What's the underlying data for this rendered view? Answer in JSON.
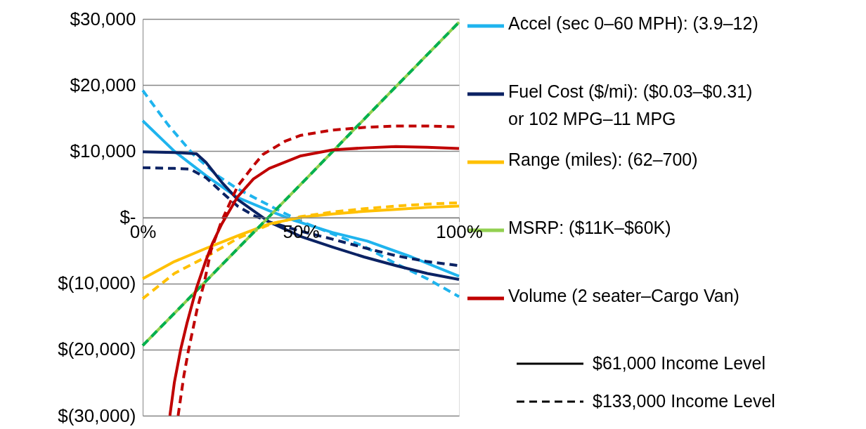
{
  "chart_data": {
    "type": "line",
    "xlim": [
      0,
      100
    ],
    "ylim": [
      -30000,
      30000
    ],
    "xticks": [
      {
        "value": 0,
        "label": "0%"
      },
      {
        "value": 50,
        "label": "50%"
      },
      {
        "value": 100,
        "label": "100%"
      }
    ],
    "yticks": [
      {
        "value": -30000,
        "label": "$(30,000)"
      },
      {
        "value": -20000,
        "label": "$(20,000)"
      },
      {
        "value": -10000,
        "label": "$(10,000)"
      },
      {
        "value": 0,
        "label": "$-"
      },
      {
        "value": 10000,
        "label": "$10,000"
      },
      {
        "value": 20000,
        "label": "$20,000"
      },
      {
        "value": 30000,
        "label": "$30,000"
      }
    ],
    "grid": "y",
    "legend": "right",
    "marker": "none",
    "annotations": [
      "$61,000 Income Level",
      "$133,000 Income Level"
    ],
    "series": [
      {
        "name": "Accel (sec 0–60 MPH): (3.9–12)",
        "color": "#1fb4ee",
        "line_style": "solid",
        "x": [
          0,
          10,
          20,
          30,
          40,
          48,
          60,
          71,
          85,
          100
        ],
        "values": [
          14600,
          10000,
          6300,
          3000,
          1000,
          -500,
          -2300,
          -3600,
          -6000,
          -8900
        ]
      },
      {
        "color": "#1fb4ee",
        "line_style": "dashed",
        "x": [
          0,
          8,
          16,
          24,
          30,
          42,
          50,
          60,
          70,
          80,
          90,
          100
        ],
        "values": [
          19200,
          14000,
          9500,
          6200,
          4300,
          1300,
          -600,
          -2500,
          -4400,
          -7000,
          -9300,
          -12000
        ]
      },
      {
        "name": "Fuel Cost ($/mi): ($0.03–$0.31)\nor 102 MPG–11 MPG",
        "color": "#0b2263",
        "line_style": "solid",
        "x": [
          0,
          10,
          17,
          20,
          25,
          30,
          35,
          40,
          50,
          60,
          70,
          80,
          90,
          100
        ],
        "values": [
          9900,
          9800,
          9600,
          8300,
          5300,
          2700,
          1000,
          -700,
          -2900,
          -4500,
          -6000,
          -7300,
          -8500,
          -9400
        ]
      },
      {
        "color": "#0b2263",
        "line_style": "dashed",
        "x": [
          0,
          10,
          15,
          20,
          25,
          30,
          35,
          40,
          50,
          60,
          70,
          80,
          90,
          100
        ],
        "values": [
          7500,
          7400,
          7300,
          6000,
          3800,
          1700,
          300,
          -700,
          -2100,
          -3300,
          -4600,
          -5800,
          -6700,
          -7300
        ]
      },
      {
        "name": "Range (miles): (62–700)",
        "color": "#ffc000",
        "line_style": "solid",
        "x": [
          0,
          10,
          20,
          30,
          40,
          50,
          60,
          70,
          80,
          90,
          100
        ],
        "values": [
          -9300,
          -6700,
          -4700,
          -2800,
          -1000,
          0,
          500,
          900,
          1200,
          1500,
          1700
        ]
      },
      {
        "color": "#ffc000",
        "line_style": "dashed",
        "x": [
          0,
          10,
          20,
          30,
          40,
          50,
          60,
          70,
          80,
          90,
          100
        ],
        "values": [
          -12300,
          -8500,
          -6000,
          -3200,
          -1100,
          100,
          800,
          1300,
          1700,
          2000,
          2200
        ]
      },
      {
        "name": "MSRP: ($11K–$60K)",
        "color": "#92d050",
        "line_style": "solid",
        "x": [
          0,
          25,
          50,
          75,
          100
        ],
        "values": [
          -19400,
          -7200,
          5000,
          17300,
          29500
        ]
      },
      {
        "color": "#00b050",
        "line_style": "dashed",
        "x": [
          0,
          25,
          50,
          75,
          100
        ],
        "values": [
          -19400,
          -7200,
          5000,
          17300,
          29500
        ]
      },
      {
        "name": "Volume (2 seater–Cargo Van)",
        "color": "#c00000",
        "line_style": "solid",
        "x": [
          8.6,
          10,
          12,
          14,
          17,
          20,
          22,
          25,
          30,
          35,
          40,
          50,
          60,
          70,
          80,
          90,
          100
        ],
        "values": [
          -30000,
          -25000,
          -20000,
          -16000,
          -10700,
          -6500,
          -4000,
          -1000,
          3100,
          5800,
          7400,
          9300,
          10200,
          10500,
          10700,
          10600,
          10400
        ]
      },
      {
        "color": "#c00000",
        "line_style": "dashed",
        "x": [
          11.2,
          13,
          14.4,
          17.2,
          19.4,
          21.6,
          25,
          30,
          35,
          38,
          45,
          50,
          60,
          70,
          80,
          90,
          99
        ],
        "values": [
          -30000,
          -24000,
          -20300,
          -13900,
          -10000,
          -5000,
          -500,
          4700,
          7800,
          9500,
          11500,
          12400,
          13200,
          13600,
          13800,
          13800,
          13700
        ]
      }
    ]
  }
}
